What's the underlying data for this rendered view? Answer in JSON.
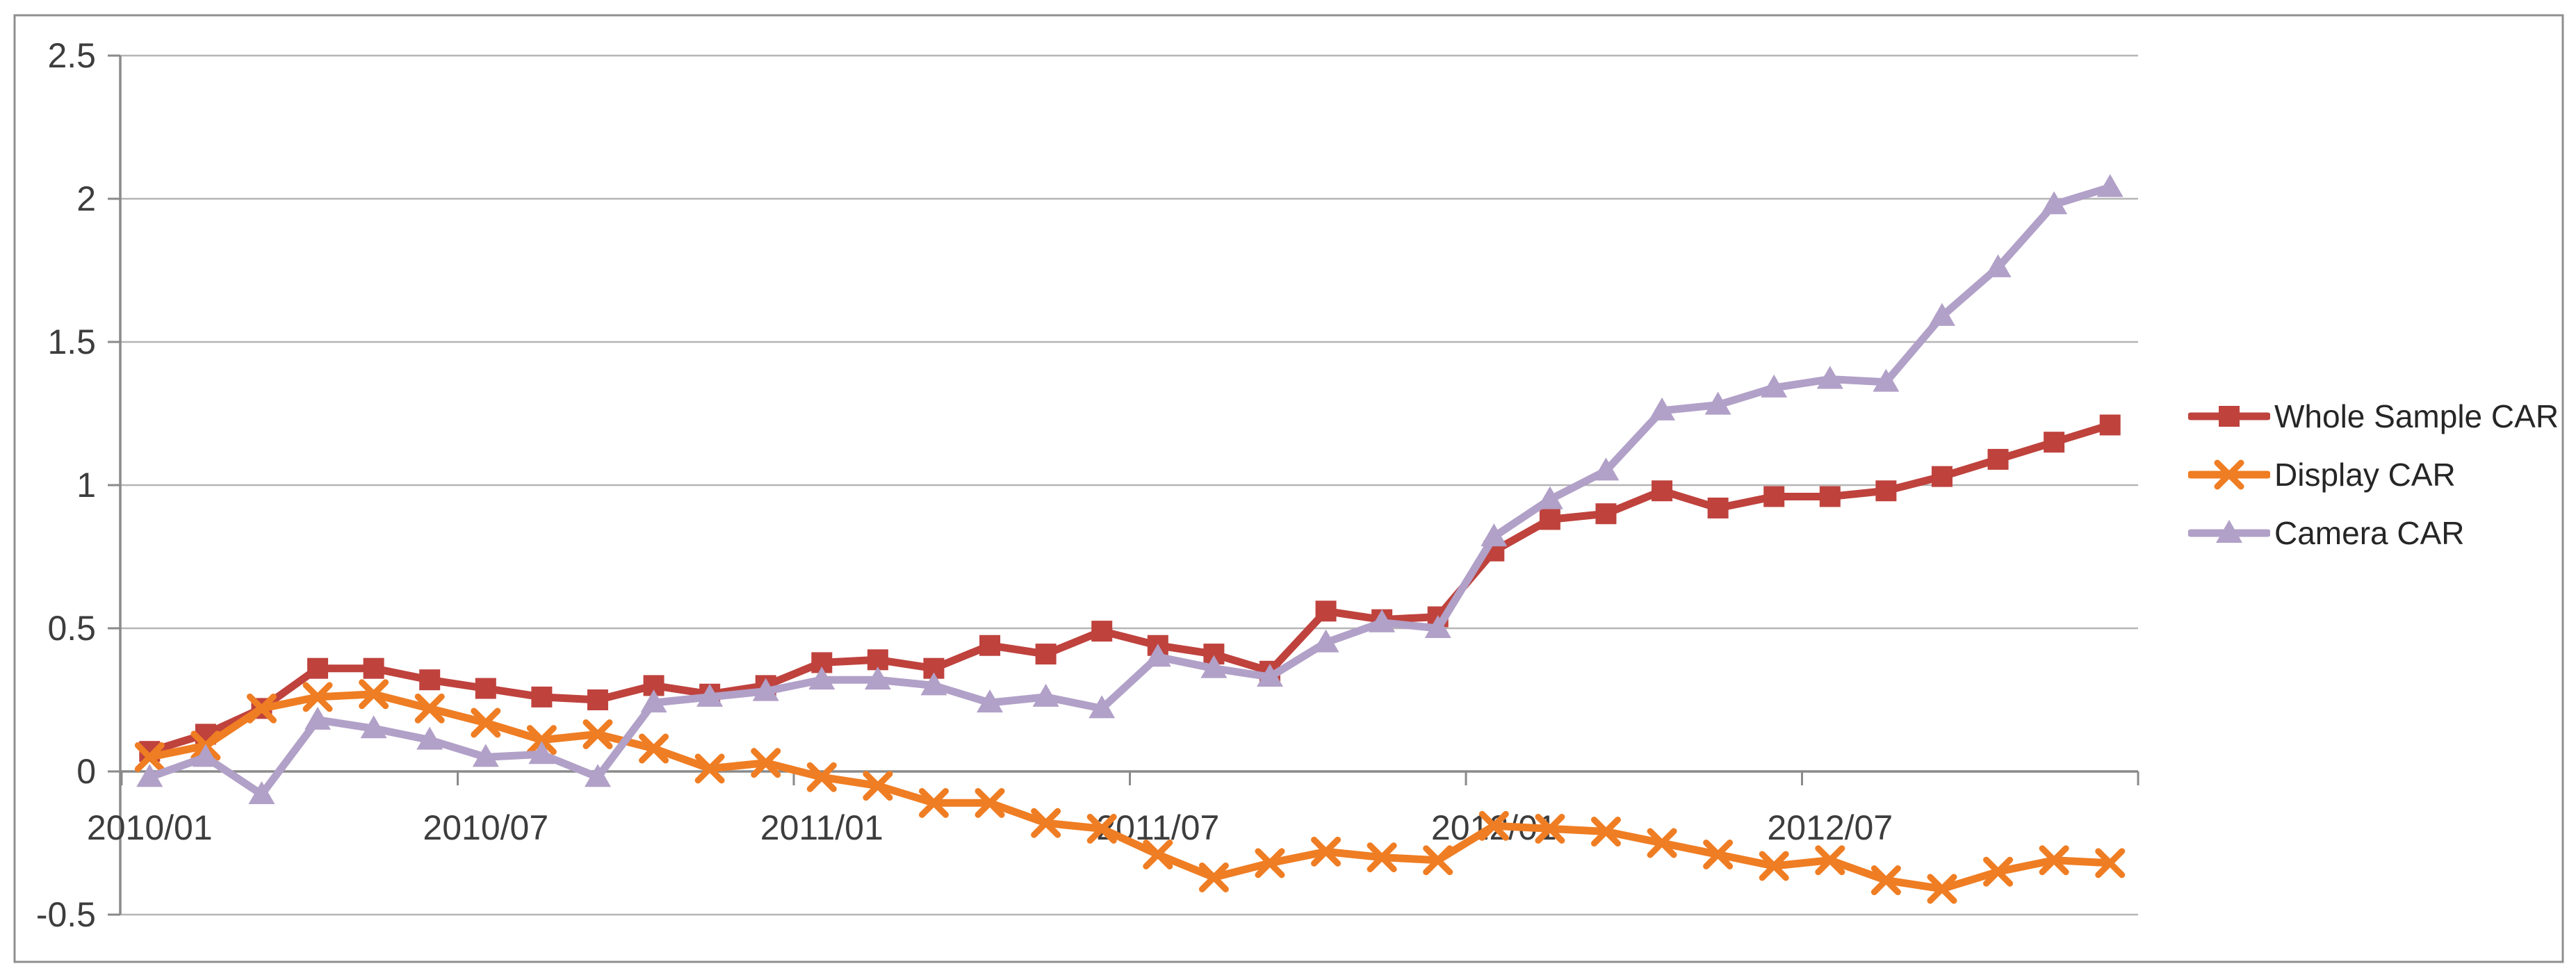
{
  "chart_data": {
    "type": "line",
    "title": "",
    "x_axis": {
      "tick_labels": [
        "2010/01",
        "2010/07",
        "2011/01",
        "2011/07",
        "2012/01",
        "2012/07"
      ],
      "categories": [
        "2010/01",
        "2010/02",
        "2010/03",
        "2010/04",
        "2010/05",
        "2010/06",
        "2010/07",
        "2010/08",
        "2010/09",
        "2010/10",
        "2010/11",
        "2010/12",
        "2011/01",
        "2011/02",
        "2011/03",
        "2011/04",
        "2011/05",
        "2011/06",
        "2011/07",
        "2011/08",
        "2011/09",
        "2011/10",
        "2011/11",
        "2011/12",
        "2012/01",
        "2012/02",
        "2012/03",
        "2012/04",
        "2012/05",
        "2012/06",
        "2012/07",
        "2012/08",
        "2012/09",
        "2012/10",
        "2012/11",
        "2012/12"
      ]
    },
    "y_axis": {
      "tick_labels": [
        "2.5",
        "2",
        "1.5",
        "1",
        "0.5",
        "0",
        "-0.5"
      ],
      "tick_values": [
        2.5,
        2,
        1.5,
        1,
        0.5,
        0,
        -0.5
      ],
      "min": -0.5,
      "max": 2.5
    },
    "grid": "horizontal",
    "legend": {
      "position": "right"
    },
    "series": [
      {
        "name": "Whole Sample CAR",
        "marker": "square",
        "color": "#bf423d",
        "values": [
          0.07,
          0.13,
          0.22,
          0.36,
          0.36,
          0.32,
          0.29,
          0.26,
          0.25,
          0.3,
          0.27,
          0.3,
          0.38,
          0.39,
          0.36,
          0.44,
          0.41,
          0.49,
          0.44,
          0.41,
          0.35,
          0.56,
          0.53,
          0.54,
          0.77,
          0.88,
          0.9,
          0.98,
          0.92,
          0.96,
          0.96,
          0.98,
          1.03,
          1.09,
          1.15,
          1.21
        ]
      },
      {
        "name": "Display CAR",
        "marker": "x",
        "color": "#ef7d23",
        "values": [
          0.05,
          0.09,
          0.22,
          0.26,
          0.27,
          0.22,
          0.17,
          0.11,
          0.13,
          0.08,
          0.01,
          0.03,
          -0.02,
          -0.05,
          -0.11,
          -0.11,
          -0.18,
          -0.2,
          -0.29,
          -0.37,
          -0.32,
          -0.28,
          -0.3,
          -0.31,
          -0.19,
          -0.2,
          -0.21,
          -0.25,
          -0.29,
          -0.33,
          -0.31,
          -0.38,
          -0.41,
          -0.35,
          -0.31,
          -0.32
        ]
      },
      {
        "name": "Camera CAR",
        "marker": "triangle",
        "color": "#b1a0c7",
        "values": [
          -0.02,
          0.05,
          -0.08,
          0.18,
          0.15,
          0.11,
          0.05,
          0.06,
          -0.02,
          0.24,
          0.26,
          0.28,
          0.32,
          0.32,
          0.3,
          0.24,
          0.26,
          0.22,
          0.4,
          0.36,
          0.33,
          0.45,
          0.52,
          0.5,
          0.82,
          0.95,
          1.05,
          1.26,
          1.28,
          1.34,
          1.37,
          1.36,
          1.59,
          1.76,
          1.98,
          2.04
        ]
      }
    ],
    "colors": {
      "gridline": "#b5b5b5",
      "axis": "#8a8a8a",
      "tick_text": "#3d3d3d",
      "frame_border": "#8f8f8f",
      "background": "#ffffff"
    }
  }
}
